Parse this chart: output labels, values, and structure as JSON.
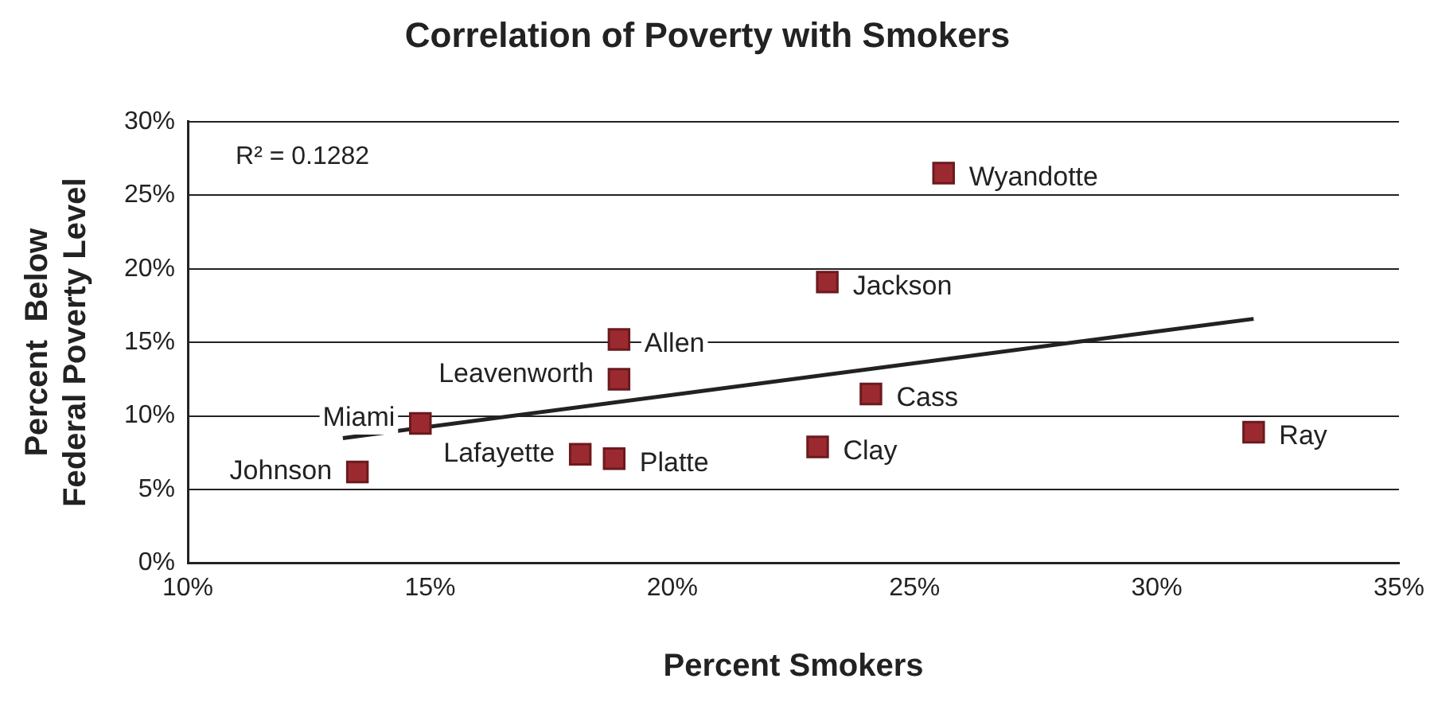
{
  "chart_data": {
    "type": "scatter",
    "title": "Correlation of Poverty with Smokers",
    "xlabel": "Percent Smokers",
    "ylabel": "Percent  Below\nFederal Poverty Level",
    "annotations": [
      "R² = 0.1282"
    ],
    "series": [
      {
        "type": "scatter",
        "color": "#9b2a30",
        "x": [
          13.5,
          14.8,
          18.1,
          18.8,
          18.9,
          18.9,
          23.0,
          23.2,
          24.1,
          25.6,
          32.0
        ],
        "values": [
          6.2,
          9.5,
          7.4,
          7.1,
          12.5,
          15.2,
          7.9,
          19.1,
          11.5,
          26.5,
          8.9
        ],
        "value_labels": [
          "Johnson",
          "Miami",
          "Lafayette",
          "Platte",
          "Leavenworth",
          "Allen",
          "Clay",
          "Jackson",
          "Cass",
          "Wyandotte",
          "Ray"
        ],
        "marker": "square"
      },
      {
        "type": "line",
        "color": "#222222",
        "x": [
          13.2,
          32.0
        ],
        "values": [
          8.5,
          16.6
        ],
        "marker": "none"
      }
    ],
    "xlim": [
      10,
      35
    ],
    "xticks": [
      {
        "value": 10,
        "label": "10%"
      },
      {
        "value": 15,
        "label": "15%"
      },
      {
        "value": 20,
        "label": "20%"
      },
      {
        "value": 25,
        "label": "25%"
      },
      {
        "value": 30,
        "label": "30%"
      },
      {
        "value": 35,
        "label": "35%"
      }
    ],
    "ylim": [
      0,
      30
    ],
    "yticks": [
      {
        "value": 0,
        "label": "0%"
      },
      {
        "value": 5,
        "label": "5%"
      },
      {
        "value": 10,
        "label": "10%"
      },
      {
        "value": 15,
        "label": "15%"
      },
      {
        "value": 20,
        "label": "20%"
      },
      {
        "value": 25,
        "label": "25%"
      },
      {
        "value": 30,
        "label": "30%"
      }
    ],
    "grid": "y",
    "legend": false
  }
}
